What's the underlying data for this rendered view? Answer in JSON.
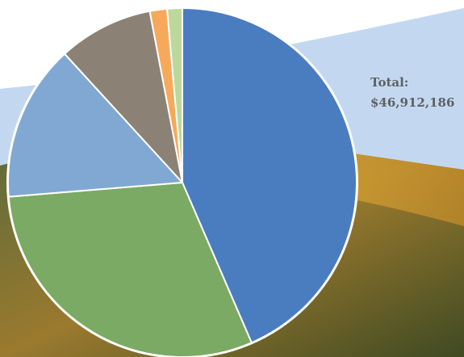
{
  "chart_data": {
    "type": "pie",
    "text": [
      "Total:",
      "$46,912,186"
    ],
    "categories": [
      null,
      null,
      null,
      null,
      null,
      null
    ],
    "values": [
      43.5,
      30.2,
      14.5,
      8.8,
      1.6,
      1.4
    ],
    "colors": [
      "#4a7cc0",
      "#7aaa63",
      "#80a8d3",
      "#8b8275",
      "#f6a95b",
      "#bcd89c"
    ]
  }
}
